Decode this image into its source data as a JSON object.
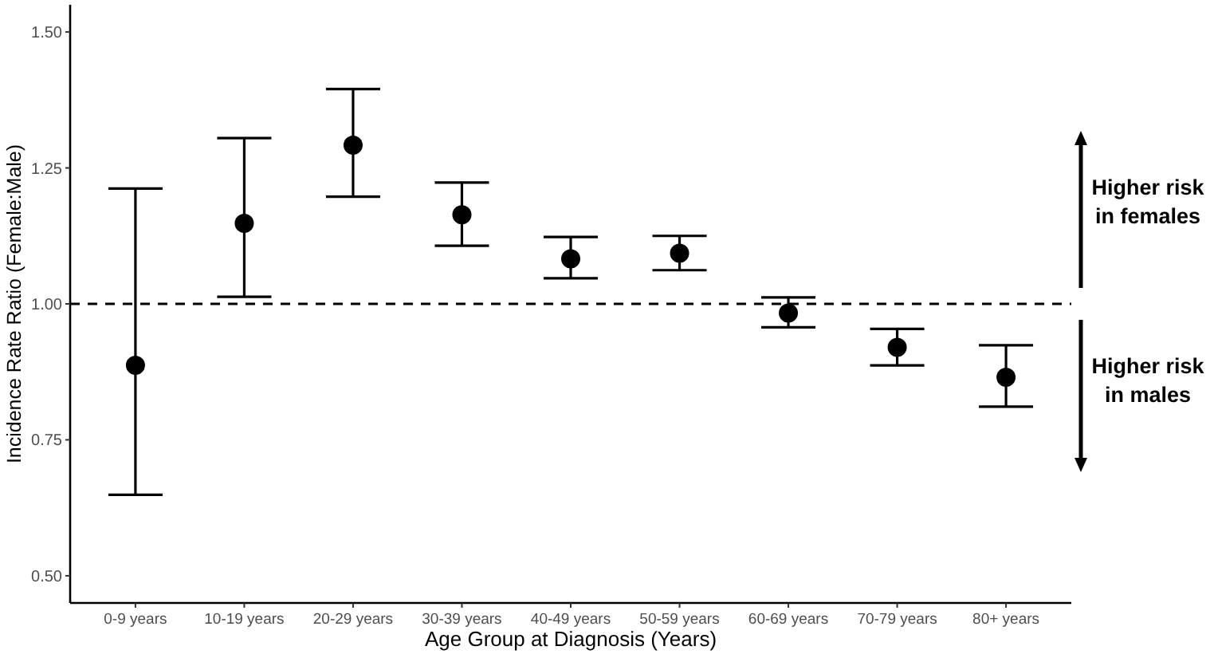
{
  "chart_data": {
    "type": "scatter",
    "xlabel": "Age Group at Diagnosis (Years)",
    "ylabel": "Incidence Rate Ratio (Female:Male)",
    "categories": [
      "0-9 years",
      "10-19 years",
      "20-29 years",
      "30-39 years",
      "40-49 years",
      "50-59 years",
      "60-69 years",
      "70-79 years",
      "80+ years"
    ],
    "values": [
      0.887,
      1.148,
      1.292,
      1.164,
      1.083,
      1.093,
      0.983,
      0.92,
      0.865
    ],
    "errors": [
      [
        0.649,
        1.212
      ],
      [
        1.013,
        1.305
      ],
      [
        1.197,
        1.395
      ],
      [
        1.107,
        1.223
      ],
      [
        1.047,
        1.123
      ],
      [
        1.062,
        1.125
      ],
      [
        0.957,
        1.012
      ],
      [
        0.887,
        0.954
      ],
      [
        0.811,
        0.924
      ]
    ],
    "color": "#000000",
    "marker": "circle",
    "grid": false,
    "ylim": [
      0.45,
      1.55
    ],
    "yticks": [
      {
        "value": 0.5,
        "label": "0.50"
      },
      {
        "value": 0.75,
        "label": "0.75"
      },
      {
        "value": 1,
        "label": "1.00"
      },
      {
        "value": 1.25,
        "label": "1.25"
      },
      {
        "value": 1.5,
        "label": "1.50"
      }
    ],
    "ref_lines": [
      {
        "axis": "y",
        "value": 1,
        "line_style": "dashed"
      }
    ],
    "annotations": [
      "Higher risk\nin females",
      "Higher risk\nin males"
    ]
  }
}
